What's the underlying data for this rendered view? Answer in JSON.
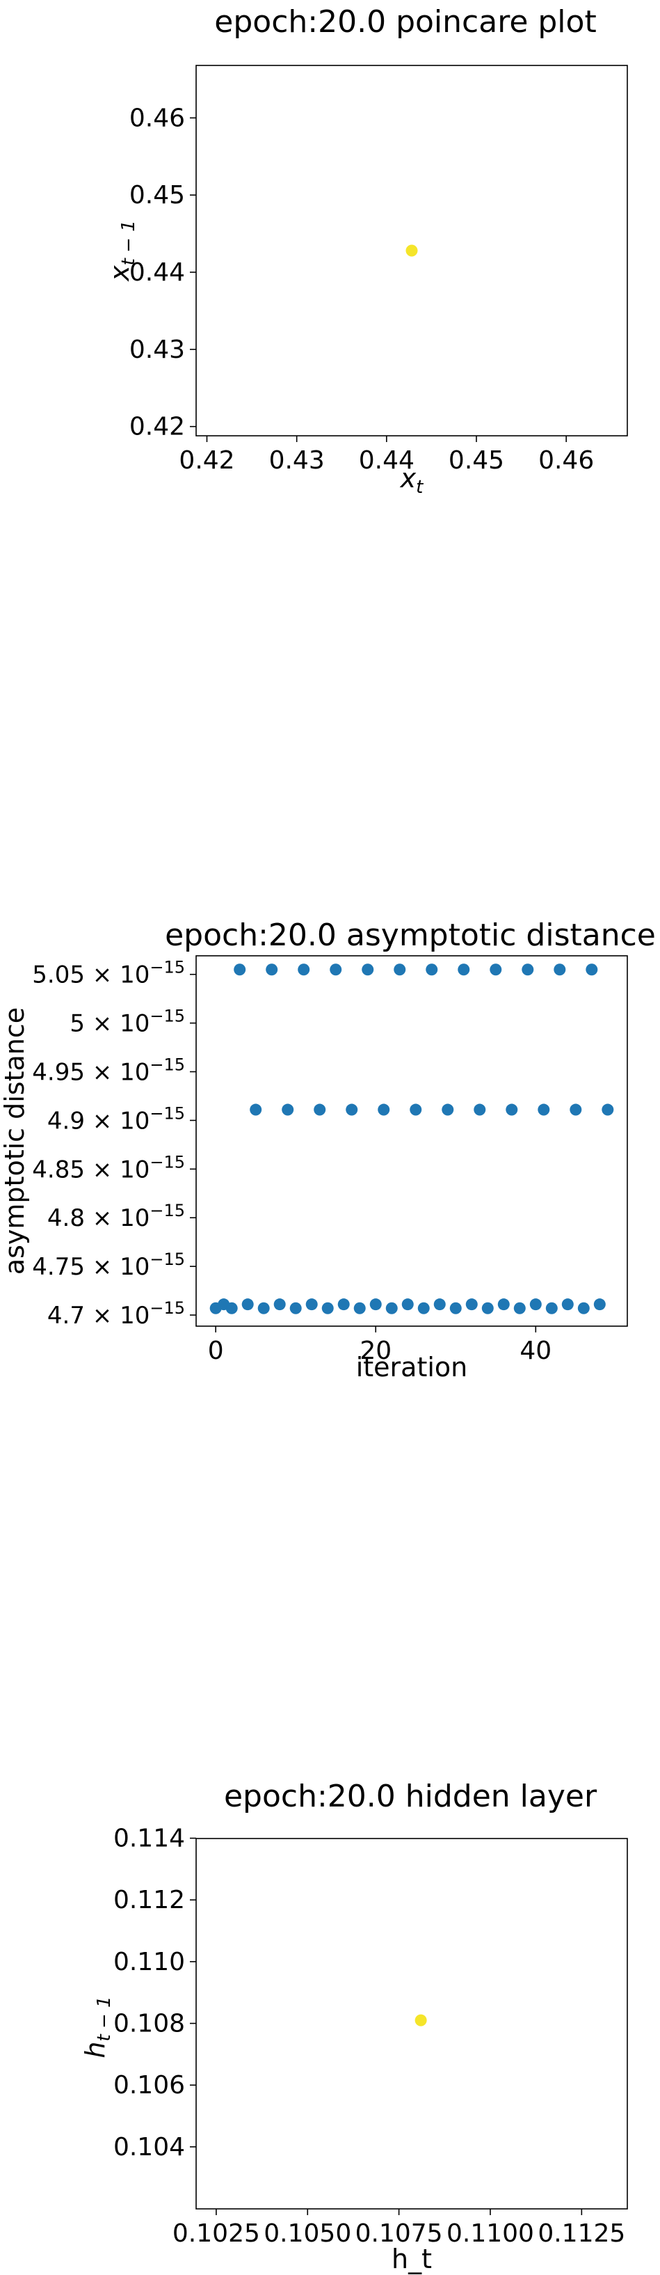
{
  "chart_data": [
    {
      "type": "scatter",
      "title": "epoch:20.0 poincare plot",
      "xlabel_base": "x",
      "xlabel_sub": "t",
      "ylabel_base": "x",
      "ylabel_sub": "t − 1",
      "xlim": [
        0.4188,
        0.4668
      ],
      "ylim": [
        0.4188,
        0.4668
      ],
      "xticks": [
        0.42,
        0.43,
        0.44,
        0.45,
        0.46
      ],
      "xtick_labels": [
        "0.42",
        "0.43",
        "0.44",
        "0.45",
        "0.46"
      ],
      "yticks": [
        0.42,
        0.43,
        0.44,
        0.45,
        0.46
      ],
      "ytick_labels": [
        "0.42",
        "0.43",
        "0.44",
        "0.45",
        "0.46"
      ],
      "point_color": "#f5e52a",
      "points": [
        {
          "x": 0.4428,
          "y": 0.4428
        }
      ]
    },
    {
      "type": "scatter",
      "title": "epoch:20.0 asymptotic distance",
      "xlabel": "iteration",
      "ylabel": "asymptotic distance",
      "xlim": [
        -2.45,
        51.45
      ],
      "ylim": [
        4.6886e-15,
        5.0691e-15
      ],
      "xticks": [
        0,
        20,
        40
      ],
      "xtick_labels": [
        "0",
        "20",
        "40"
      ],
      "yticks": [
        4.7e-15,
        4.75e-15,
        4.8e-15,
        4.85e-15,
        4.9e-15,
        4.95e-15,
        5e-15,
        5.05e-15
      ],
      "ytick_mantissas": [
        "4.7",
        "4.75",
        "4.8",
        "4.85",
        "4.9",
        "4.95",
        "5",
        "5.05"
      ],
      "ytick_times": "×",
      "ytick_base": "10",
      "ytick_exponent": "−15",
      "point_color": "#1f77b4",
      "x": [
        0,
        1,
        2,
        3,
        4,
        5,
        6,
        7,
        8,
        9,
        10,
        11,
        12,
        13,
        14,
        15,
        16,
        17,
        18,
        19,
        20,
        21,
        22,
        23,
        24,
        25,
        26,
        27,
        28,
        29,
        30,
        31,
        32,
        33,
        34,
        35,
        36,
        37,
        38,
        39,
        40,
        41,
        42,
        43,
        44,
        45,
        46,
        47,
        48,
        49
      ],
      "y": [
        4.707e-15,
        4.711e-15,
        4.707e-15,
        5.055e-15,
        4.711e-15,
        4.911e-15,
        4.707e-15,
        5.055e-15,
        4.711e-15,
        4.911e-15,
        4.707e-15,
        5.055e-15,
        4.711e-15,
        4.911e-15,
        4.707e-15,
        5.055e-15,
        4.711e-15,
        4.911e-15,
        4.707e-15,
        5.055e-15,
        4.711e-15,
        4.911e-15,
        4.707e-15,
        5.055e-15,
        4.711e-15,
        4.911e-15,
        4.707e-15,
        5.055e-15,
        4.711e-15,
        4.911e-15,
        4.707e-15,
        5.055e-15,
        4.711e-15,
        4.911e-15,
        4.707e-15,
        5.055e-15,
        4.711e-15,
        4.911e-15,
        4.707e-15,
        5.055e-15,
        4.711e-15,
        4.911e-15,
        4.707e-15,
        5.055e-15,
        4.711e-15,
        4.911e-15,
        4.707e-15,
        5.055e-15,
        4.711e-15,
        4.911e-15
      ]
    },
    {
      "type": "scatter",
      "title": "epoch:20.0 hidden layer",
      "xlabel": "h_t",
      "ylabel_base": "h",
      "ylabel_sub": "t − 1",
      "xlim": [
        0.10195,
        0.11375
      ],
      "ylim": [
        0.10199,
        0.11399
      ],
      "xticks": [
        0.1025,
        0.105,
        0.1075,
        0.11,
        0.1125
      ],
      "xtick_labels": [
        "0.1025",
        "0.1050",
        "0.1075",
        "0.1100",
        "0.1125"
      ],
      "yticks": [
        0.104,
        0.106,
        0.108,
        0.11,
        0.112,
        0.114
      ],
      "ytick_labels": [
        "0.104",
        "0.106",
        "0.108",
        "0.110",
        "0.112",
        "0.114"
      ],
      "point_color": "#f5e52a",
      "points": [
        {
          "x": 0.1081,
          "y": 0.1081
        }
      ]
    }
  ]
}
